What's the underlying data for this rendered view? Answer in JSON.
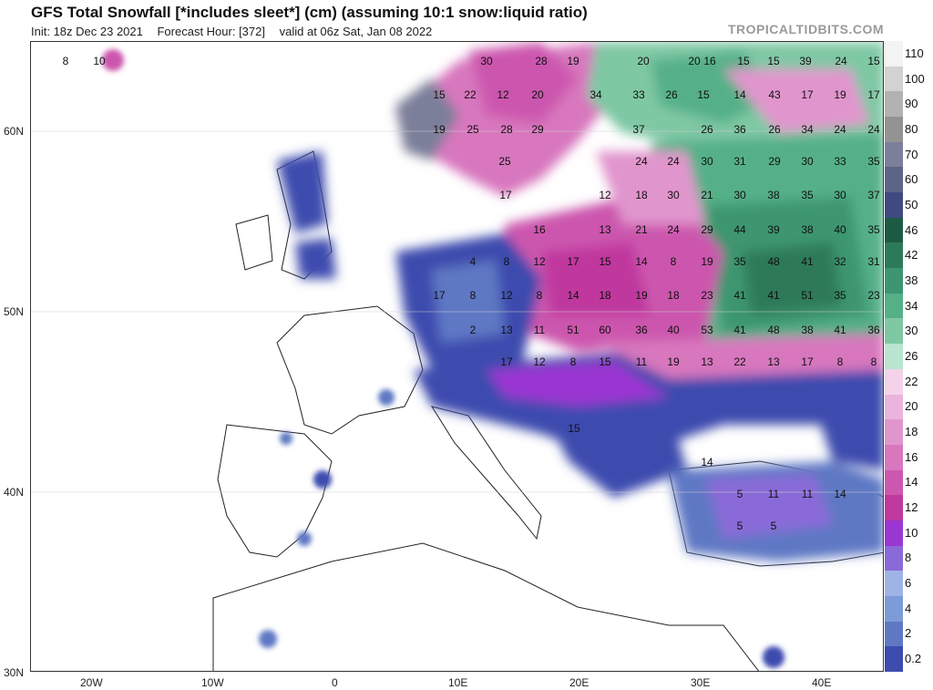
{
  "header": {
    "title": "GFS Total Snowfall [*includes sleet*] (cm) (assuming 10:1 snow:liquid ratio)",
    "init": "Init: 18z Dec 23 2021",
    "forecast_hour": "Forecast Hour: [372]",
    "valid": "valid at 06z Sat, Jan 08 2022",
    "watermark": "TROPICALTIDBITS.COM"
  },
  "axes": {
    "lat_labels": [
      "60N",
      "50N",
      "40N",
      "30N"
    ],
    "lon_labels": [
      "20W",
      "10W",
      "0",
      "10E",
      "20E",
      "30E",
      "40E"
    ]
  },
  "legend": {
    "levels": [
      {
        "label": "110",
        "color": "#f3f3f3"
      },
      {
        "label": "100",
        "color": "#d2d2d2"
      },
      {
        "label": "90",
        "color": "#b2b2b2"
      },
      {
        "label": "80",
        "color": "#939393"
      },
      {
        "label": "70",
        "color": "#7c7f9a"
      },
      {
        "label": "60",
        "color": "#5d6488"
      },
      {
        "label": "50",
        "color": "#3f4a80"
      },
      {
        "label": "46",
        "color": "#1d5a44"
      },
      {
        "label": "42",
        "color": "#2d7a58"
      },
      {
        "label": "38",
        "color": "#3d9670"
      },
      {
        "label": "34",
        "color": "#55b088"
      },
      {
        "label": "30",
        "color": "#7fc8a4"
      },
      {
        "label": "26",
        "color": "#b9e4cf"
      },
      {
        "label": "22",
        "color": "#f4d3ea"
      },
      {
        "label": "20",
        "color": "#eab4dc"
      },
      {
        "label": "18",
        "color": "#e195cd"
      },
      {
        "label": "16",
        "color": "#d877be"
      },
      {
        "label": "14",
        "color": "#cc57ae"
      },
      {
        "label": "12",
        "color": "#c0399e"
      },
      {
        "label": "10",
        "color": "#9a36d2"
      },
      {
        "label": "8",
        "color": "#8a6ad8"
      },
      {
        "label": "6",
        "color": "#9fb4e6"
      },
      {
        "label": "4",
        "color": "#7d9bd8"
      },
      {
        "label": "2",
        "color": "#5f78c4"
      },
      {
        "label": "0.2",
        "color": "#3d4cae"
      }
    ]
  },
  "map_values": [
    {
      "v": "8"
    },
    {
      "v": "10"
    },
    {
      "v": "30"
    },
    {
      "v": "28"
    },
    {
      "v": "19"
    },
    {
      "v": "20"
    },
    {
      "v": "20"
    },
    {
      "v": "16"
    },
    {
      "v": "15"
    },
    {
      "v": "15"
    },
    {
      "v": "39"
    },
    {
      "v": "24"
    },
    {
      "v": "15"
    },
    {
      "v": "15"
    },
    {
      "v": "22"
    },
    {
      "v": "12"
    },
    {
      "v": "20"
    },
    {
      "v": "34"
    },
    {
      "v": "33"
    },
    {
      "v": "26"
    },
    {
      "v": "15"
    },
    {
      "v": "14"
    },
    {
      "v": "43"
    },
    {
      "v": "17"
    },
    {
      "v": "19"
    },
    {
      "v": "17"
    },
    {
      "v": "19"
    },
    {
      "v": "25"
    },
    {
      "v": "28"
    },
    {
      "v": "29"
    },
    {
      "v": "37"
    },
    {
      "v": "26"
    },
    {
      "v": "36"
    },
    {
      "v": "26"
    },
    {
      "v": "34"
    },
    {
      "v": "24"
    },
    {
      "v": "24"
    },
    {
      "v": "25"
    },
    {
      "v": "24"
    },
    {
      "v": "24"
    },
    {
      "v": "30"
    },
    {
      "v": "31"
    },
    {
      "v": "29"
    },
    {
      "v": "30"
    },
    {
      "v": "33"
    },
    {
      "v": "35"
    },
    {
      "v": "17"
    },
    {
      "v": "12"
    },
    {
      "v": "18"
    },
    {
      "v": "30"
    },
    {
      "v": "21"
    },
    {
      "v": "30"
    },
    {
      "v": "38"
    },
    {
      "v": "35"
    },
    {
      "v": "30"
    },
    {
      "v": "37"
    },
    {
      "v": "16"
    },
    {
      "v": "13"
    },
    {
      "v": "21"
    },
    {
      "v": "24"
    },
    {
      "v": "29"
    },
    {
      "v": "44"
    },
    {
      "v": "39"
    },
    {
      "v": "38"
    },
    {
      "v": "40"
    },
    {
      "v": "35"
    },
    {
      "v": "4"
    },
    {
      "v": "8"
    },
    {
      "v": "12"
    },
    {
      "v": "17"
    },
    {
      "v": "15"
    },
    {
      "v": "14"
    },
    {
      "v": "8"
    },
    {
      "v": "19"
    },
    {
      "v": "35"
    },
    {
      "v": "48"
    },
    {
      "v": "41"
    },
    {
      "v": "32"
    },
    {
      "v": "31"
    },
    {
      "v": "17"
    },
    {
      "v": "8"
    },
    {
      "v": "12"
    },
    {
      "v": "8"
    },
    {
      "v": "14"
    },
    {
      "v": "18"
    },
    {
      "v": "19"
    },
    {
      "v": "18"
    },
    {
      "v": "23"
    },
    {
      "v": "41"
    },
    {
      "v": "41"
    },
    {
      "v": "51"
    },
    {
      "v": "35"
    },
    {
      "v": "23"
    },
    {
      "v": "2"
    },
    {
      "v": "13"
    },
    {
      "v": "11"
    },
    {
      "v": "51"
    },
    {
      "v": "60"
    },
    {
      "v": "36"
    },
    {
      "v": "40"
    },
    {
      "v": "53"
    },
    {
      "v": "41"
    },
    {
      "v": "48"
    },
    {
      "v": "38"
    },
    {
      "v": "41"
    },
    {
      "v": "36"
    },
    {
      "v": "17"
    },
    {
      "v": "12"
    },
    {
      "v": "8"
    },
    {
      "v": "15"
    },
    {
      "v": "11"
    },
    {
      "v": "19"
    },
    {
      "v": "13"
    },
    {
      "v": "22"
    },
    {
      "v": "13"
    },
    {
      "v": "17"
    },
    {
      "v": "8"
    },
    {
      "v": "8"
    },
    {
      "v": "15"
    },
    {
      "v": "14"
    },
    {
      "v": "5"
    },
    {
      "v": "11"
    },
    {
      "v": "11"
    },
    {
      "v": "14"
    },
    {
      "v": "5"
    },
    {
      "v": "5"
    }
  ]
}
